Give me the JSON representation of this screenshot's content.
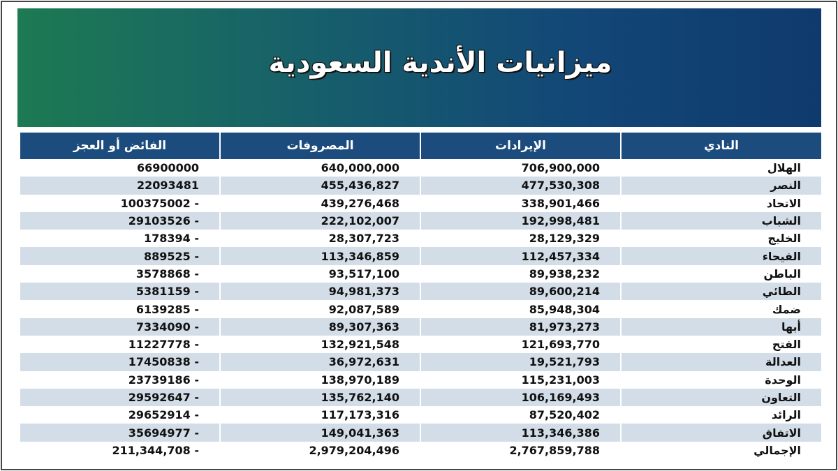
{
  "header": {
    "title": "ميزانيات الأندية السعودية"
  },
  "table": {
    "columns": [
      "النادي",
      "الإيرادات",
      "المصروفات",
      "الفائض أو العجز"
    ],
    "rows": [
      [
        "الهلال",
        "706,900,000",
        "640,000,000",
        "66900000"
      ],
      [
        "النصر",
        "477,530,308",
        "455,436,827",
        "22093481"
      ],
      [
        "الاتحاد",
        "338,901,466",
        "439,276,468",
        "100375002 -"
      ],
      [
        "الشباب",
        "192,998,481",
        "222,102,007",
        "29103526 -"
      ],
      [
        "الخليج",
        "28,129,329",
        "28,307,723",
        "178394 -"
      ],
      [
        "الفيحاء",
        "112,457,334",
        "113,346,859",
        "889525 -"
      ],
      [
        "الباطن",
        "89,938,232",
        "93,517,100",
        "3578868 -"
      ],
      [
        "الطائي",
        "89,600,214",
        "94,981,373",
        "5381159 -"
      ],
      [
        "ضمك",
        "85,948,304",
        "92,087,589",
        "6139285 -"
      ],
      [
        "أبها",
        "81,973,273",
        "89,307,363",
        "7334090 -"
      ],
      [
        "الفتح",
        "121,693,770",
        "132,921,548",
        "11227778 -"
      ],
      [
        "العدالة",
        "19,521,793",
        "36,972,631",
        "17450838 -"
      ],
      [
        "الوحدة",
        "115,231,003",
        "138,970,189",
        "23739186 -"
      ],
      [
        "التعاون",
        "106,169,493",
        "135,762,140",
        "29592647 -"
      ],
      [
        "الرائد",
        "87,520,402",
        "117,173,316",
        "29652914 -"
      ],
      [
        "الاتفاق",
        "113,346,386",
        "149,041,363",
        "35694977 -"
      ],
      [
        "الإجمالي",
        "2,767,859,788",
        "2,979,204,496",
        "211,344,708 -"
      ]
    ]
  }
}
